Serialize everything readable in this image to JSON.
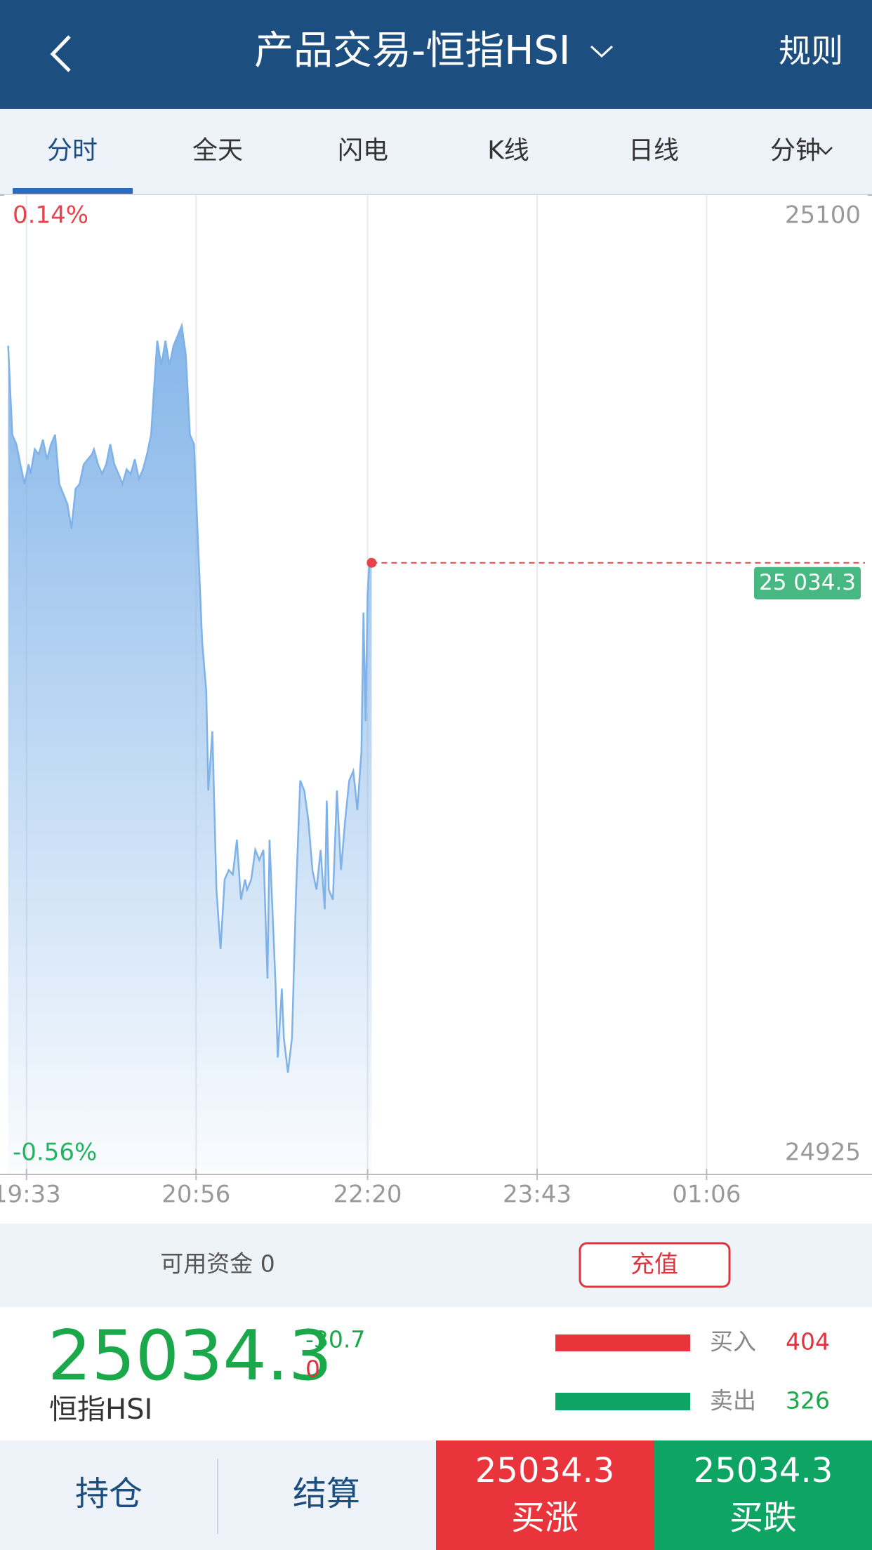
{
  "header": {
    "title": "产品交易-恒指HSI",
    "rules": "规则"
  },
  "tabs": [
    "分时",
    "全天",
    "闪电",
    "K线",
    "日线",
    "分钟"
  ],
  "chart_data": {
    "type": "area",
    "color": "#7fb2e8",
    "grid": true,
    "x": [
      1164,
      1166,
      1168,
      1170,
      1172,
      1174,
      1175,
      1177,
      1179,
      1181,
      1183,
      1185,
      1187,
      1189,
      1191,
      1193,
      1195,
      1197,
      1199,
      1201,
      1203,
      1205,
      1206,
      1208,
      1210,
      1212,
      1214,
      1216,
      1218,
      1220,
      1222,
      1224,
      1226,
      1228,
      1230,
      1232,
      1234,
      1236,
      1237,
      1239,
      1241,
      1243,
      1245,
      1247,
      1249,
      1251,
      1253,
      1255,
      1257,
      1259,
      1261,
      1262,
      1264,
      1265,
      1266,
      1268,
      1270,
      1272,
      1274,
      1276,
      1278,
      1280,
      1281,
      1283,
      1285,
      1287,
      1289,
      1291,
      1292,
      1294,
      1295,
      1296,
      1298,
      1299,
      1301,
      1303,
      1305,
      1307,
      1309,
      1311,
      1313,
      1315,
      1317,
      1319,
      1320,
      1321,
      1323,
      1325,
      1327,
      1329,
      1331,
      1333,
      1335,
      1337,
      1338,
      1339,
      1340,
      1341,
      1342
    ],
    "values": [
      25073.1,
      25057.2,
      25055.5,
      25051.9,
      25048.4,
      25051.9,
      25050.2,
      25054.6,
      25053.7,
      25056.3,
      25052.8,
      25055.5,
      25057.2,
      25048.4,
      25046.6,
      25044.8,
      25040.4,
      25047.5,
      25048.4,
      25051.9,
      25052.8,
      25053.7,
      25054.6,
      25051.9,
      25050.2,
      25051.9,
      25055.5,
      25051.9,
      25050.2,
      25048.4,
      25051.0,
      25050.2,
      25052.8,
      25049.3,
      25051.0,
      25053.7,
      25057.2,
      25068.7,
      25074.0,
      25069.6,
      25074.0,
      25069.6,
      25073.1,
      25074.9,
      25076.7,
      25071.4,
      25057.2,
      25055.5,
      25037.8,
      25020.1,
      25011.3,
      24993.6,
      25004.2,
      24990.1,
      24975.9,
      24965.3,
      24977.7,
      24979.4,
      24978.6,
      24984.8,
      24974.1,
      24977.7,
      24975.9,
      24977.7,
      24983.0,
      24981.2,
      24983.0,
      24960.0,
      24984.8,
      24967.1,
      24958.2,
      24945.9,
      24958.2,
      24949.4,
      24943.2,
      24949.4,
      24975.9,
      24995.4,
      24993.6,
      24988.3,
      24979.4,
      24975.9,
      24983.0,
      24972.4,
      24991.8,
      24975.9,
      24974.1,
      24993.6,
      24979.4,
      24988.3,
      24995.4,
      24997.1,
      24990.1,
      25000.7,
      25025.4,
      25006.0,
      25028.9,
      25035.1,
      25034.3
    ],
    "xlim": [
      1160,
      1587
    ],
    "xticks": [
      {
        "value": 1173,
        "label": "19:33"
      },
      {
        "value": 1256,
        "label": "20:56"
      },
      {
        "value": 1340,
        "label": "22:20"
      },
      {
        "value": 1423,
        "label": "23:43"
      },
      {
        "value": 1506,
        "label": "01:06"
      }
    ],
    "ylim": [
      24925,
      25100
    ],
    "yticks": [
      24925,
      25100
    ],
    "y2lim": [
      -0.56,
      0.14
    ],
    "y2ticks": [
      {
        "value": -0.56,
        "label": "-0.56%"
      },
      {
        "value": 0.14,
        "label": "0.14%"
      }
    ],
    "price_line": {
      "value": 25034.3,
      "label": "25 034.3"
    }
  },
  "account": {
    "label": "可用资金 0",
    "button": "充值"
  },
  "quote": {
    "price": "25034.3",
    "change": "-30.7",
    "change_pct": "0",
    "name": "恒指HSI",
    "buy_label": "买入",
    "buy_count": "404",
    "sell_label": "卖出",
    "sell_count": "326"
  },
  "actions": {
    "positions": "持仓",
    "settle": "结算",
    "buy_up_price": "25034.3",
    "buy_up": "买涨",
    "buy_down_price": "25034.3",
    "buy_down": "买跌"
  }
}
